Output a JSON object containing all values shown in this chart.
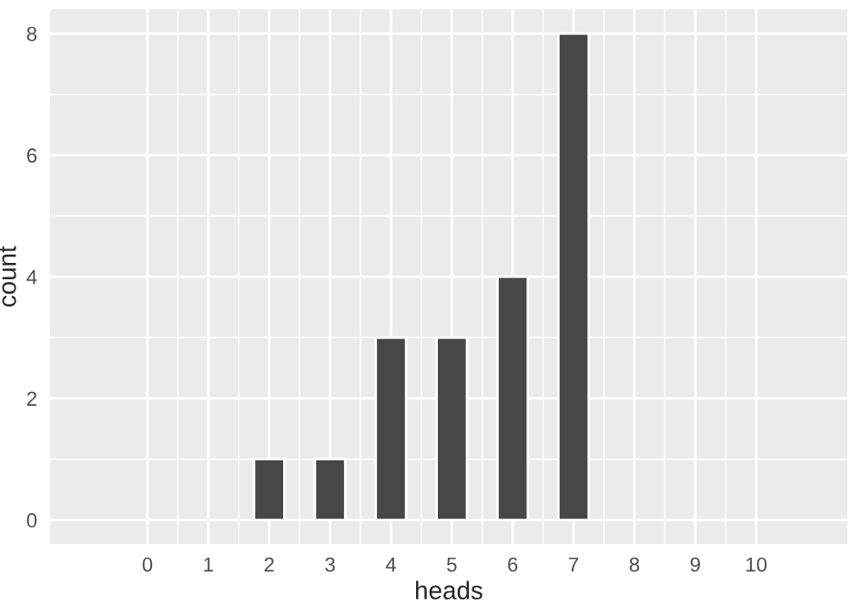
{
  "chart_data": {
    "type": "bar",
    "xlabel": "heads",
    "ylabel": "count",
    "x": [
      2,
      3,
      4,
      5,
      6,
      7
    ],
    "values": [
      1,
      1,
      3,
      3,
      4,
      8
    ],
    "color": "#474747",
    "xlim": [
      -1.6,
      11.5
    ],
    "xticks": [
      0,
      1,
      2,
      3,
      4,
      5,
      6,
      7,
      8,
      9,
      10
    ],
    "ylim": [
      -0.4,
      8.4
    ],
    "yticks": [
      0,
      2,
      4,
      6,
      8
    ],
    "grid": true
  }
}
